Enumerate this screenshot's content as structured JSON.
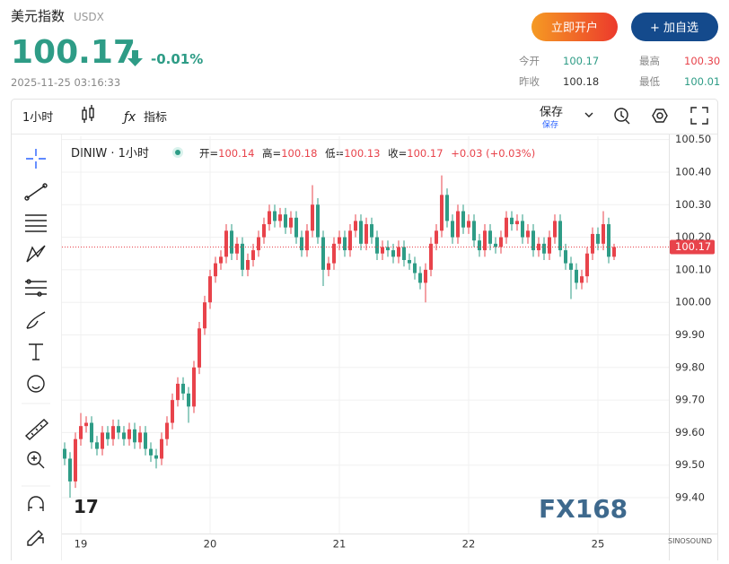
{
  "header": {
    "name": "美元指数",
    "code": "USDX",
    "price": "100.17",
    "change": "-0.01%",
    "timestamp": "2025-11-25 03:16:33",
    "buttons": [
      "立即开户",
      "+ 加自选"
    ],
    "stats": [
      {
        "label": "今开",
        "value": "100.17"
      },
      {
        "label": "最高",
        "value": "100.30"
      },
      {
        "label": "昨收",
        "value": "100.18"
      },
      {
        "label": "最低",
        "value": "100.01"
      }
    ]
  },
  "toolbar": {
    "interval": "1小时",
    "indicators": "指标",
    "save": "保存",
    "save_sub": "保存"
  },
  "legend": {
    "symbol": "DINIW · 1小时",
    "items": [
      {
        "label": "开=",
        "value": "100.14"
      },
      {
        "label": "高=",
        "value": "100.18"
      },
      {
        "label": "低=",
        "value": "100.13"
      },
      {
        "label": "收=",
        "value": "100.17"
      }
    ],
    "change": "+0.03 (+0.03%)"
  },
  "watermark": "FX168",
  "watermark_small": "SINOSOUND",
  "chart_data": {
    "type": "candlestick",
    "up_color": "#e8434b",
    "down_color": "#2e9c86",
    "grid": true,
    "categories": [
      null,
      null,
      null,
      "19",
      null,
      null,
      null,
      null,
      null,
      null,
      null,
      null,
      null,
      null,
      null,
      null,
      null,
      null,
      null,
      null,
      null,
      null,
      null,
      null,
      null,
      null,
      null,
      "20",
      null,
      null,
      null,
      null,
      null,
      null,
      null,
      null,
      null,
      null,
      null,
      null,
      null,
      null,
      null,
      null,
      null,
      null,
      null,
      null,
      null,
      null,
      null,
      "21",
      null,
      null,
      null,
      null,
      null,
      null,
      null,
      null,
      null,
      null,
      null,
      null,
      null,
      null,
      null,
      null,
      null,
      null,
      null,
      null,
      null,
      null,
      null,
      "22",
      null,
      null,
      null,
      null,
      null,
      null,
      null,
      null,
      null,
      null,
      null,
      null,
      null,
      null,
      null,
      null,
      null,
      null,
      null,
      null,
      null,
      null,
      null,
      "25",
      null,
      null,
      null
    ],
    "open": [
      99.55,
      99.52,
      99.45,
      99.58,
      99.62,
      99.63,
      99.57,
      99.55,
      99.6,
      99.58,
      99.62,
      99.6,
      99.58,
      99.61,
      99.57,
      99.6,
      99.55,
      99.53,
      99.52,
      99.58,
      99.63,
      99.7,
      99.75,
      99.72,
      99.68,
      99.8,
      99.92,
      100.0,
      100.08,
      100.12,
      100.14,
      100.22,
      100.15,
      100.18,
      100.1,
      100.13,
      100.16,
      100.2,
      100.24,
      100.28,
      100.25,
      100.27,
      100.23,
      100.26,
      100.2,
      100.16,
      100.22,
      100.3,
      100.2,
      100.1,
      100.12,
      100.18,
      100.2,
      100.16,
      100.22,
      100.25,
      100.18,
      100.24,
      100.2,
      100.15,
      100.17,
      100.16,
      100.14,
      100.17,
      100.13,
      100.12,
      100.09,
      100.06,
      100.1,
      100.18,
      100.22,
      100.33,
      100.25,
      100.2,
      100.28,
      100.23,
      100.25,
      100.19,
      100.16,
      100.22,
      100.18,
      100.17,
      100.2,
      100.26,
      100.24,
      100.25,
      100.2,
      100.22,
      100.16,
      100.18,
      100.15,
      100.2,
      100.25,
      100.16,
      100.12,
      100.1,
      100.06,
      100.08,
      100.15,
      100.21,
      100.18,
      100.24,
      100.14
    ],
    "high": [
      99.57,
      99.54,
      99.6,
      99.66,
      99.65,
      99.65,
      99.59,
      99.62,
      99.62,
      99.64,
      99.64,
      99.62,
      99.63,
      99.63,
      99.62,
      99.62,
      99.57,
      99.55,
      99.6,
      99.65,
      99.72,
      99.77,
      99.77,
      99.74,
      99.82,
      99.94,
      100.02,
      100.1,
      100.14,
      100.16,
      100.24,
      100.24,
      100.2,
      100.2,
      100.15,
      100.18,
      100.22,
      100.26,
      100.3,
      100.3,
      100.29,
      100.29,
      100.28,
      100.28,
      100.22,
      100.24,
      100.36,
      100.32,
      100.22,
      100.14,
      100.2,
      100.22,
      100.22,
      100.24,
      100.27,
      100.27,
      100.26,
      100.26,
      100.22,
      100.19,
      100.19,
      100.18,
      100.19,
      100.19,
      100.15,
      100.14,
      100.11,
      100.12,
      100.2,
      100.24,
      100.39,
      100.35,
      100.27,
      100.3,
      100.3,
      100.27,
      100.27,
      100.21,
      100.24,
      100.24,
      100.2,
      100.22,
      100.28,
      100.28,
      100.27,
      100.27,
      100.24,
      100.24,
      100.2,
      100.2,
      100.22,
      100.27,
      100.27,
      100.18,
      100.14,
      100.12,
      100.1,
      100.17,
      100.23,
      100.23,
      100.28,
      100.26,
      100.18
    ],
    "low": [
      99.5,
      99.4,
      99.43,
      99.56,
      99.6,
      99.55,
      99.53,
      99.53,
      99.56,
      99.56,
      99.58,
      99.56,
      99.56,
      99.55,
      99.55,
      99.53,
      99.51,
      99.49,
      99.5,
      99.56,
      99.61,
      99.68,
      99.7,
      99.63,
      99.66,
      99.78,
      99.9,
      99.98,
      100.06,
      100.1,
      100.12,
      100.13,
      100.13,
      100.08,
      100.08,
      100.11,
      100.14,
      100.18,
      100.22,
      100.23,
      100.23,
      100.21,
      100.21,
      100.18,
      100.14,
      100.14,
      100.2,
      100.18,
      100.05,
      100.08,
      100.1,
      100.16,
      100.14,
      100.14,
      100.2,
      100.16,
      100.16,
      100.18,
      100.13,
      100.13,
      100.14,
      100.12,
      100.12,
      100.11,
      100.1,
      100.07,
      100.04,
      100.0,
      100.08,
      100.16,
      100.2,
      100.23,
      100.18,
      100.18,
      100.21,
      100.21,
      100.17,
      100.14,
      100.14,
      100.16,
      100.15,
      100.15,
      100.18,
      100.22,
      100.22,
      100.18,
      100.18,
      100.14,
      100.14,
      100.13,
      100.13,
      100.18,
      100.14,
      100.1,
      100.01,
      100.04,
      100.04,
      100.06,
      100.13,
      100.16,
      100.16,
      100.12,
      100.13
    ],
    "close": [
      99.52,
      99.45,
      99.58,
      99.62,
      99.63,
      99.57,
      99.55,
      99.6,
      99.58,
      99.62,
      99.6,
      99.58,
      99.61,
      99.57,
      99.6,
      99.55,
      99.53,
      99.52,
      99.58,
      99.63,
      99.7,
      99.75,
      99.72,
      99.68,
      99.8,
      99.92,
      100.0,
      100.08,
      100.12,
      100.14,
      100.22,
      100.15,
      100.18,
      100.1,
      100.13,
      100.16,
      100.2,
      100.24,
      100.28,
      100.25,
      100.27,
      100.23,
      100.26,
      100.2,
      100.16,
      100.22,
      100.3,
      100.2,
      100.1,
      100.12,
      100.18,
      100.2,
      100.16,
      100.22,
      100.25,
      100.18,
      100.24,
      100.2,
      100.15,
      100.17,
      100.16,
      100.14,
      100.17,
      100.13,
      100.12,
      100.09,
      100.06,
      100.1,
      100.18,
      100.22,
      100.33,
      100.25,
      100.2,
      100.28,
      100.23,
      100.25,
      100.19,
      100.16,
      100.22,
      100.18,
      100.17,
      100.2,
      100.26,
      100.24,
      100.25,
      100.2,
      100.22,
      100.16,
      100.18,
      100.15,
      100.2,
      100.25,
      100.16,
      100.12,
      100.1,
      100.06,
      100.08,
      100.15,
      100.21,
      100.18,
      100.24,
      100.14,
      100.17
    ],
    "last_price": 100.17,
    "ylim": [
      99.29,
      100.51
    ],
    "yticks": [
      {
        "value": 99.4,
        "label": "99.40"
      },
      {
        "value": 99.5,
        "label": "99.50"
      },
      {
        "value": 99.6,
        "label": "99.60"
      },
      {
        "value": 99.7,
        "label": "99.70"
      },
      {
        "value": 99.8,
        "label": "99.80"
      },
      {
        "value": 99.9,
        "label": "99.90"
      },
      {
        "value": 100,
        "label": "100.00"
      },
      {
        "value": 100.1,
        "label": "100.10"
      },
      {
        "value": 100.2,
        "label": "100.20"
      },
      {
        "value": 100.3,
        "label": "100.30"
      },
      {
        "value": 100.4,
        "label": "100.40"
      },
      {
        "value": 100.5,
        "label": "100.50"
      }
    ]
  }
}
